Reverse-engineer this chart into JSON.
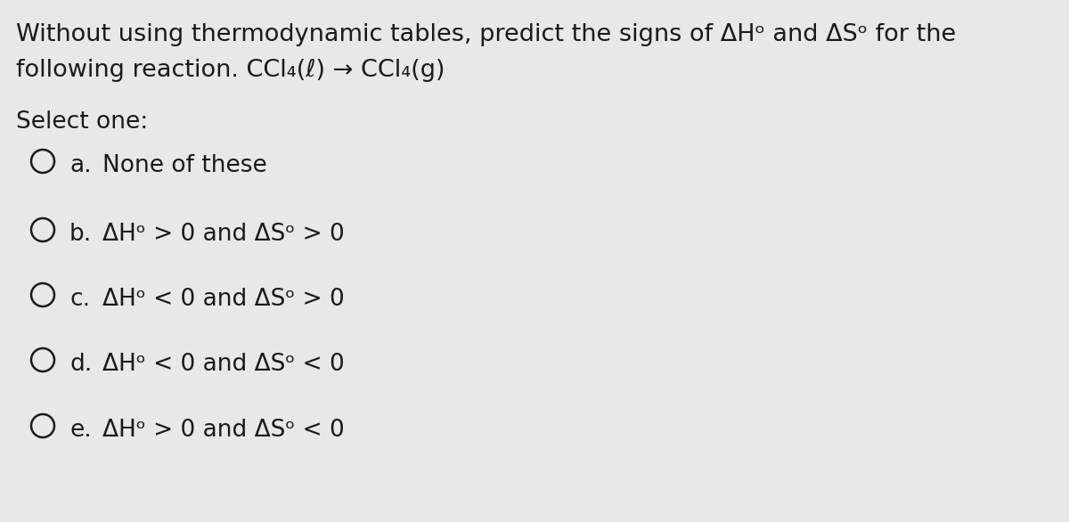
{
  "background_color": "#e8e8e8",
  "text_color": "#1a1a1a",
  "title_line1": "Without using thermodynamic tables, predict the signs of ΔHᵒ and ΔSᵒ for the",
  "title_line2": "following reaction. CCl₄(ℓ) → CCl₄(g)",
  "select_text": "Select one:",
  "options": [
    {
      "label": "a.",
      "text": "None of these"
    },
    {
      "label": "b.",
      "text": "ΔHᵒ > 0 and ΔSᵒ > 0"
    },
    {
      "label": "c.",
      "text": "ΔHᵒ < 0 and ΔSᵒ > 0"
    },
    {
      "label": "d.",
      "text": "ΔHᵒ < 0 and ΔSᵒ < 0"
    },
    {
      "label": "e.",
      "text": "ΔHᵒ > 0 and ΔSᵒ < 0"
    }
  ],
  "title_fontsize": 19.5,
  "option_fontsize": 19,
  "select_fontsize": 19,
  "figsize": [
    12.0,
    5.86
  ]
}
